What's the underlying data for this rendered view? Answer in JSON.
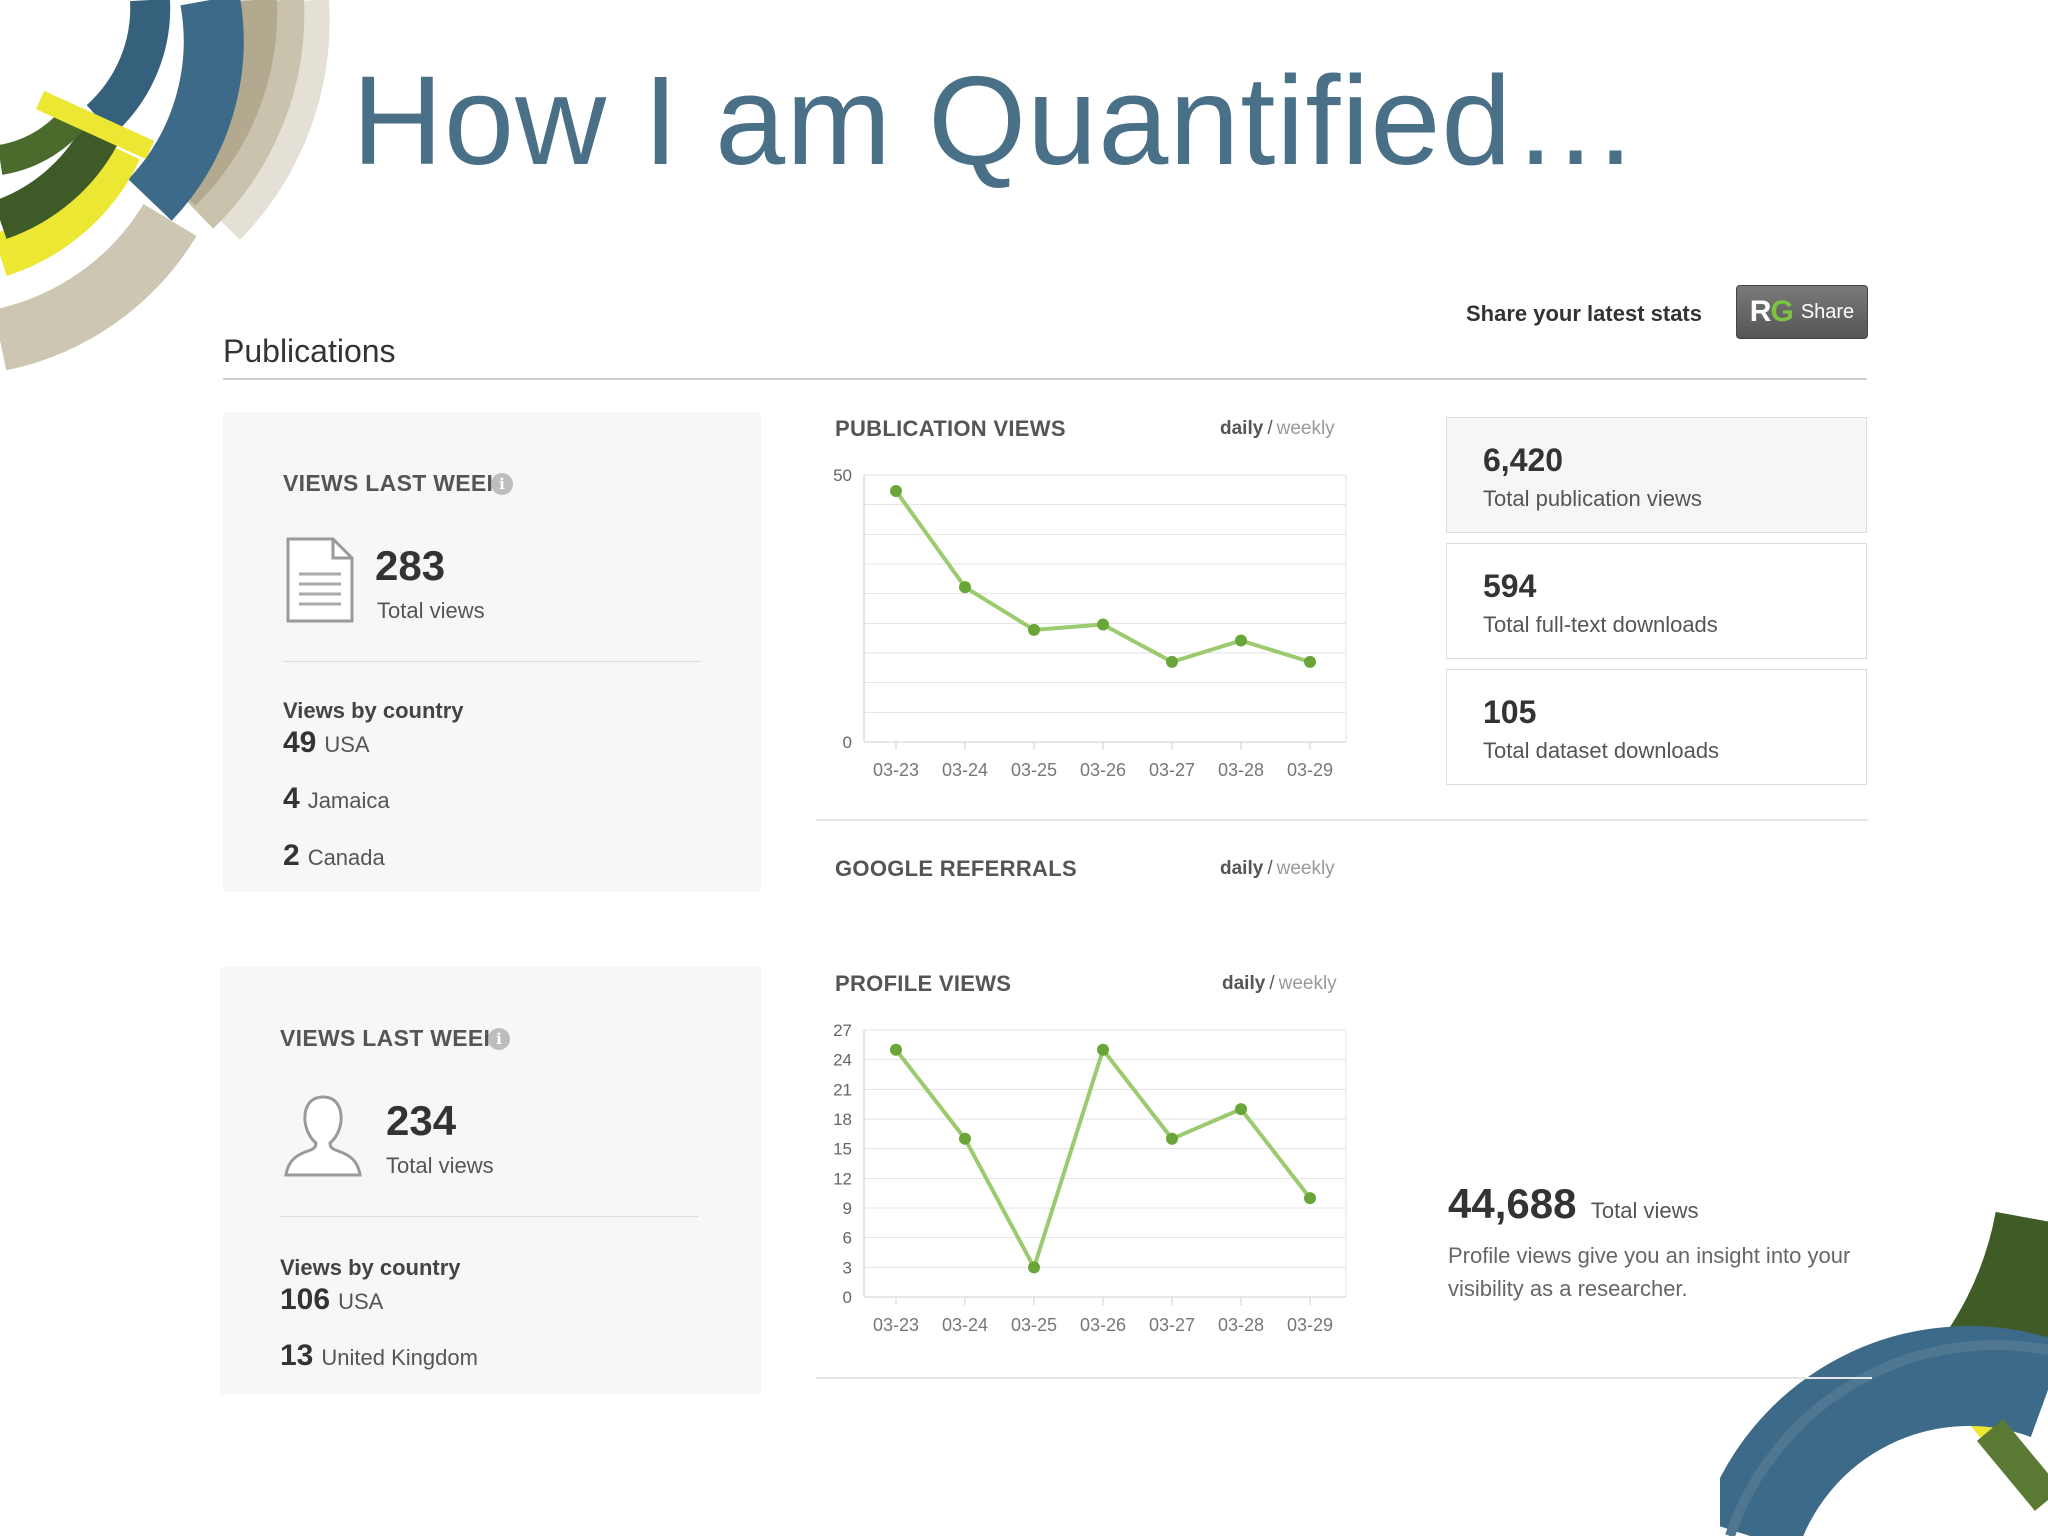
{
  "slide": {
    "title": "How I am Quantified…"
  },
  "header": {
    "section_title": "Publications",
    "share_prompt": "Share your latest stats",
    "share_button": {
      "logo_r": "R",
      "logo_g": "G",
      "label": "Share"
    }
  },
  "publications_panel": {
    "heading": "VIEWS LAST WEEK",
    "info_glyph": "i",
    "total": "283",
    "total_label": "Total views",
    "country_heading": "Views by country",
    "countries": [
      {
        "count": "49",
        "name": "USA"
      },
      {
        "count": "4",
        "name": "Jamaica"
      },
      {
        "count": "2",
        "name": "Canada"
      }
    ]
  },
  "profile_panel": {
    "heading": "VIEWS LAST WEEK",
    "info_glyph": "i",
    "total": "234",
    "total_label": "Total views",
    "country_heading": "Views by country",
    "countries": [
      {
        "count": "106",
        "name": "USA"
      },
      {
        "count": "13",
        "name": "United Kingdom"
      }
    ]
  },
  "toggle": {
    "daily": "daily",
    "separator": "/",
    "weekly": "weekly"
  },
  "google_referrals": {
    "title": "GOOGLE REFERRALS"
  },
  "publication_stats": [
    {
      "value": "6,420",
      "label": "Total publication views"
    },
    {
      "value": "594",
      "label": "Total full-text downloads"
    },
    {
      "value": "105",
      "label": "Total dataset downloads"
    }
  ],
  "profile_summary": {
    "total": "44,688",
    "total_label": "Total views",
    "note_line1": "Profile views give you an insight into your",
    "note_line2": "visibility as a researcher."
  },
  "colors": {
    "line": "#9ccb6f",
    "point": "#6aa53a",
    "title": "#4a7088"
  },
  "chart_data": [
    {
      "type": "line",
      "title": "PUBLICATION VIEWS",
      "categories": [
        "03-23",
        "03-24",
        "03-25",
        "03-26",
        "03-27",
        "03-28",
        "03-29"
      ],
      "values": [
        47,
        29,
        21,
        22,
        15,
        19,
        15
      ],
      "ylim": [
        0,
        50
      ],
      "yticks": [
        0,
        50
      ],
      "grid": true
    },
    {
      "type": "line",
      "title": "PROFILE VIEWS",
      "categories": [
        "03-23",
        "03-24",
        "03-25",
        "03-26",
        "03-27",
        "03-28",
        "03-29"
      ],
      "values": [
        25,
        16,
        3,
        25,
        16,
        19,
        10
      ],
      "ylim": [
        0,
        27
      ],
      "yticks": [
        0,
        3,
        6,
        9,
        12,
        15,
        18,
        21,
        24,
        27
      ],
      "grid": true
    }
  ]
}
